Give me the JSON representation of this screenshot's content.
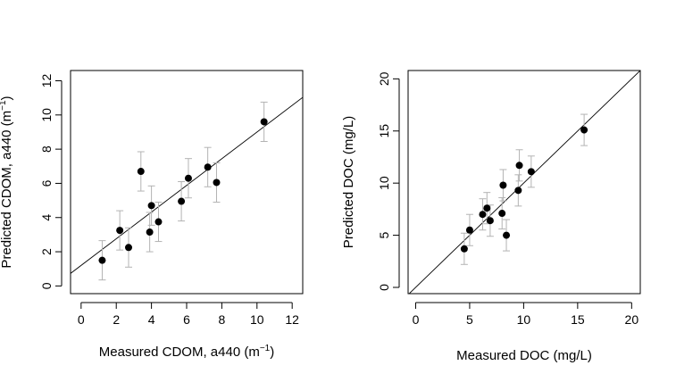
{
  "chart_data": [
    {
      "type": "scatter",
      "xlabel": "Measured CDOM, a440 (m",
      "xlabel_sup": "−1",
      "xlabel_end": ")",
      "ylabel": "Predicted CDOM, a440 (m",
      "ylabel_sup": "−1",
      "ylabel_end": ")",
      "xlim": [
        -0.6,
        12.6
      ],
      "ylim": [
        -0.45,
        12.6
      ],
      "xticks": [
        0,
        2,
        4,
        6,
        8,
        10,
        12
      ],
      "yticks": [
        0,
        2,
        4,
        6,
        8,
        10,
        12
      ],
      "grid": false,
      "error_bars": true,
      "fit_line": {
        "intercept": 1.2,
        "slope": 0.78
      },
      "points": [
        {
          "x": 1.2,
          "y": 1.5,
          "err": 1.15
        },
        {
          "x": 2.2,
          "y": 3.25,
          "err": 1.15
        },
        {
          "x": 2.7,
          "y": 2.25,
          "err": 1.15
        },
        {
          "x": 3.4,
          "y": 6.7,
          "err": 1.15
        },
        {
          "x": 3.9,
          "y": 3.15,
          "err": 1.15
        },
        {
          "x": 4.0,
          "y": 4.7,
          "err": 1.15
        },
        {
          "x": 4.4,
          "y": 3.75,
          "err": 1.15
        },
        {
          "x": 5.7,
          "y": 4.95,
          "err": 1.15
        },
        {
          "x": 6.1,
          "y": 6.3,
          "err": 1.15
        },
        {
          "x": 7.2,
          "y": 6.95,
          "err": 1.15
        },
        {
          "x": 7.7,
          "y": 6.05,
          "err": 1.15
        },
        {
          "x": 10.4,
          "y": 9.6,
          "err": 1.15
        }
      ]
    },
    {
      "type": "scatter",
      "xlabel": "Measured DOC (mg/L)",
      "ylabel": "Predicted DOC (mg/L)",
      "xlim": [
        -0.7,
        20.8
      ],
      "ylim": [
        -0.6,
        20.8
      ],
      "xticks": [
        0,
        5,
        10,
        15,
        20
      ],
      "yticks": [
        0,
        5,
        10,
        15,
        20
      ],
      "grid": false,
      "error_bars": true,
      "fit_line": {
        "intercept": 0,
        "slope": 1
      },
      "points": [
        {
          "x": 4.5,
          "y": 3.7,
          "err": 1.5
        },
        {
          "x": 5.0,
          "y": 5.5,
          "err": 1.5
        },
        {
          "x": 6.2,
          "y": 7.0,
          "err": 1.5
        },
        {
          "x": 6.6,
          "y": 7.6,
          "err": 1.5
        },
        {
          "x": 6.9,
          "y": 6.4,
          "err": 1.5
        },
        {
          "x": 8.0,
          "y": 7.1,
          "err": 1.5
        },
        {
          "x": 8.1,
          "y": 9.8,
          "err": 1.5
        },
        {
          "x": 8.4,
          "y": 5.0,
          "err": 1.5
        },
        {
          "x": 9.5,
          "y": 9.3,
          "err": 1.5
        },
        {
          "x": 9.6,
          "y": 11.7,
          "err": 1.5
        },
        {
          "x": 10.7,
          "y": 11.1,
          "err": 1.5
        },
        {
          "x": 15.6,
          "y": 15.1,
          "err": 1.5
        }
      ]
    }
  ]
}
